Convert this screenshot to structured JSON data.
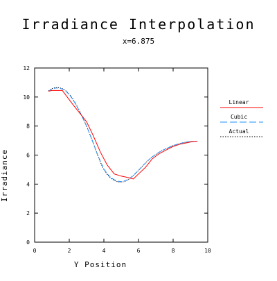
{
  "chart_data": {
    "type": "line",
    "title": "Irradiance Interpolation",
    "subtitle": "x=6.875",
    "xlabel": "Y Position",
    "ylabel": "Irradiance",
    "xlim": [
      0,
      10
    ],
    "ylim": [
      0,
      12
    ],
    "x_ticks": [
      0,
      2,
      4,
      6,
      8,
      10
    ],
    "y_ticks": [
      0,
      2,
      4,
      6,
      8,
      10,
      12
    ],
    "grid": false,
    "legend_position": "right",
    "series": [
      {
        "name": "Linear",
        "color": "#ff0000",
        "style": "solid",
        "x": [
          0.8,
          1.0,
          1.2,
          1.6,
          2.2,
          2.6,
          3.0,
          3.4,
          3.8,
          4.2,
          4.6,
          5.0,
          5.4,
          5.7,
          6.0,
          6.4,
          6.8,
          7.2,
          7.6,
          8.0,
          8.4,
          8.8,
          9.2,
          9.4
        ],
        "y": [
          10.4,
          10.45,
          10.45,
          10.45,
          9.5,
          8.9,
          8.3,
          7.3,
          6.2,
          5.3,
          4.7,
          4.55,
          4.45,
          4.35,
          4.7,
          5.15,
          5.75,
          6.1,
          6.35,
          6.6,
          6.75,
          6.85,
          6.95,
          6.95
        ]
      },
      {
        "name": "Cubic",
        "color": "#1e90ff",
        "style": "dashed",
        "x": [
          0.8,
          1.0,
          1.2,
          1.4,
          1.6,
          1.8,
          2.0,
          2.2,
          2.4,
          2.6,
          2.8,
          3.0,
          3.2,
          3.4,
          3.6,
          3.8,
          4.0,
          4.2,
          4.4,
          4.6,
          4.8,
          5.0,
          5.2,
          5.4,
          5.6,
          5.8,
          6.0,
          6.2,
          6.4,
          6.6,
          6.8,
          7.0,
          7.2,
          7.4,
          7.6,
          7.8,
          8.0,
          8.2,
          8.4,
          8.6,
          8.8,
          9.0,
          9.2,
          9.4
        ],
        "y": [
          10.4,
          10.55,
          10.62,
          10.62,
          10.55,
          10.4,
          10.18,
          9.85,
          9.45,
          9.0,
          8.5,
          8.0,
          7.4,
          6.8,
          6.15,
          5.55,
          5.05,
          4.7,
          4.45,
          4.3,
          4.2,
          4.18,
          4.22,
          4.32,
          4.5,
          4.72,
          4.95,
          5.2,
          5.45,
          5.68,
          5.88,
          6.05,
          6.2,
          6.33,
          6.45,
          6.55,
          6.65,
          6.73,
          6.8,
          6.86,
          6.9,
          6.93,
          6.95,
          6.96
        ]
      },
      {
        "name": "Actual",
        "color": "#000000",
        "style": "dotted",
        "x": [
          0.8,
          1.0,
          1.2,
          1.4,
          1.6,
          1.8,
          2.0,
          2.2,
          2.4,
          2.6,
          2.8,
          3.0,
          3.2,
          3.4,
          3.6,
          3.8,
          4.0,
          4.2,
          4.4,
          4.6,
          4.8,
          5.0,
          5.2,
          5.4,
          5.6,
          5.8,
          6.0,
          6.2,
          6.4,
          6.6,
          6.8,
          7.0,
          7.2,
          7.4,
          7.6,
          7.8,
          8.0,
          8.2,
          8.4,
          8.6,
          8.8,
          9.0,
          9.2,
          9.4
        ],
        "y": [
          10.42,
          10.58,
          10.65,
          10.65,
          10.58,
          10.43,
          10.2,
          9.88,
          9.48,
          9.02,
          8.52,
          8.0,
          7.4,
          6.78,
          6.12,
          5.5,
          5.0,
          4.65,
          4.4,
          4.25,
          4.15,
          4.13,
          4.18,
          4.3,
          4.48,
          4.7,
          4.95,
          5.2,
          5.45,
          5.68,
          5.88,
          6.05,
          6.2,
          6.33,
          6.45,
          6.55,
          6.65,
          6.73,
          6.8,
          6.86,
          6.9,
          6.93,
          6.95,
          6.96
        ]
      }
    ]
  }
}
